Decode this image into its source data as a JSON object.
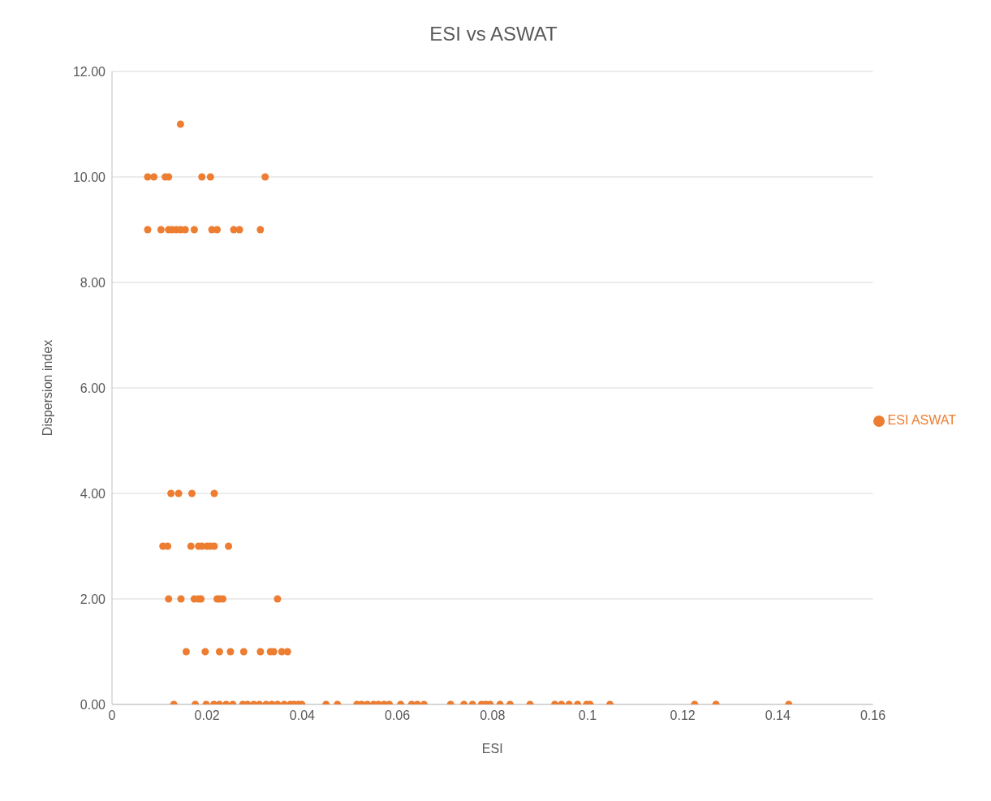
{
  "chart_data": {
    "type": "scatter",
    "title": "ESI vs ASWAT",
    "xlabel": "ESI",
    "ylabel": "Dispersion index",
    "xlim": [
      0,
      0.16
    ],
    "xticks": [
      0,
      0.02,
      0.04,
      0.06,
      0.08,
      0.1,
      0.12,
      0.14,
      0.16
    ],
    "ylim": [
      0,
      12
    ],
    "yticks": [
      {
        "value": 0,
        "label": "0.00"
      },
      {
        "value": 2,
        "label": "2.00"
      },
      {
        "value": 4,
        "label": "4.00"
      },
      {
        "value": 6,
        "label": "6.00"
      },
      {
        "value": 8,
        "label": "8.00"
      },
      {
        "value": 10,
        "label": "10.00"
      },
      {
        "value": 12,
        "label": "12.00"
      }
    ],
    "grid": "y",
    "legend": "right",
    "marker": "circle",
    "series": [
      {
        "name": "ESI ASWAT",
        "color": "#ed7d31",
        "x": [
          0.0144,
          0.0075,
          0.0088,
          0.0112,
          0.0119,
          0.0189,
          0.0207,
          0.0322,
          0.0075,
          0.0103,
          0.0119,
          0.0126,
          0.0135,
          0.0144,
          0.0154,
          0.0173,
          0.021,
          0.0221,
          0.0256,
          0.0268,
          0.0312,
          0.0124,
          0.014,
          0.0168,
          0.0215,
          0.0107,
          0.0117,
          0.0166,
          0.0182,
          0.0189,
          0.02,
          0.0207,
          0.0215,
          0.0245,
          0.0119,
          0.0145,
          0.0173,
          0.0182,
          0.0187,
          0.0221,
          0.0226,
          0.0233,
          0.0348,
          0.0156,
          0.0196,
          0.0226,
          0.0249,
          0.0277,
          0.0312,
          0.0333,
          0.034,
          0.0357,
          0.0369,
          0.013,
          0.0175,
          0.0198,
          0.0214,
          0.0226,
          0.024,
          0.0254,
          0.0275,
          0.0285,
          0.0298,
          0.031,
          0.0324,
          0.0336,
          0.0348,
          0.0362,
          0.0375,
          0.0383,
          0.0392,
          0.0399,
          0.045,
          0.0474,
          0.0515,
          0.0525,
          0.0537,
          0.055,
          0.056,
          0.0572,
          0.0583,
          0.0607,
          0.063,
          0.0642,
          0.0656,
          0.0712,
          0.074,
          0.0758,
          0.0777,
          0.0786,
          0.0795,
          0.0816,
          0.0837,
          0.0879,
          0.0931,
          0.0945,
          0.0961,
          0.0979,
          0.0998,
          0.1005,
          0.1047,
          0.1225,
          0.127,
          0.1423
        ],
        "values": [
          11,
          10,
          10,
          10,
          10,
          10,
          10,
          10,
          9,
          9,
          9,
          9,
          9,
          9,
          9,
          9,
          9,
          9,
          9,
          9,
          9,
          4,
          4,
          4,
          4,
          3,
          3,
          3,
          3,
          3,
          3,
          3,
          3,
          3,
          2,
          2,
          2,
          2,
          2,
          2,
          2,
          2,
          2,
          1,
          1,
          1,
          1,
          1,
          1,
          1,
          1,
          1,
          1,
          0,
          0,
          0,
          0,
          0,
          0,
          0,
          0,
          0,
          0,
          0,
          0,
          0,
          0,
          0,
          0,
          0,
          0,
          0,
          0,
          0,
          0,
          0,
          0,
          0,
          0,
          0,
          0,
          0,
          0,
          0,
          0,
          0,
          0,
          0,
          0,
          0,
          0,
          0,
          0,
          0,
          0,
          0,
          0,
          0,
          0,
          0,
          0,
          0,
          0,
          0
        ]
      }
    ]
  }
}
